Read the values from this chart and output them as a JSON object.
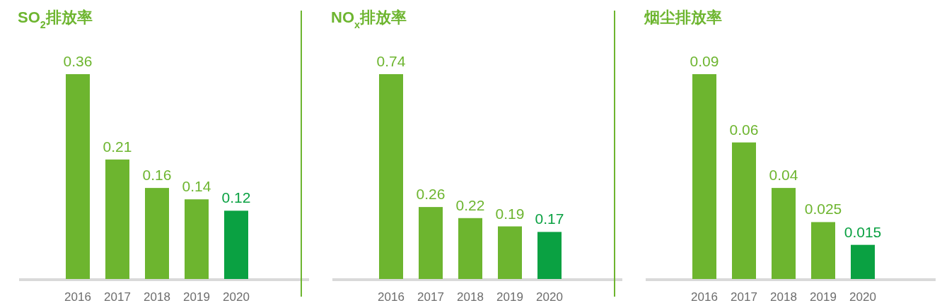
{
  "chart_data": [
    {
      "type": "bar",
      "title": "SO$_{2}$排放率",
      "categories": [
        "2016",
        "2017",
        "2018",
        "2019",
        "2020"
      ],
      "values": [
        0.36,
        0.21,
        0.16,
        0.14,
        0.12
      ],
      "colors": [
        "#6db52f",
        "#6db52f",
        "#6db52f",
        "#6db52f",
        "#0aa142"
      ],
      "data_labels": true
    },
    {
      "type": "bar",
      "title": "NO$_{x}$排放率",
      "categories": [
        "2016",
        "2017",
        "2018",
        "2019",
        "2020"
      ],
      "values": [
        0.74,
        0.26,
        0.22,
        0.19,
        0.17
      ],
      "colors": [
        "#6db52f",
        "#6db52f",
        "#6db52f",
        "#6db52f",
        "#0aa142"
      ],
      "data_labels": true
    },
    {
      "type": "bar",
      "title": "烟尘排放率",
      "categories": [
        "2016",
        "2017",
        "2018",
        "2019",
        "2020"
      ],
      "values": [
        0.09,
        0.06,
        0.04,
        0.025,
        0.015
      ],
      "colors": [
        "#6db52f",
        "#6db52f",
        "#6db52f",
        "#6db52f",
        "#0aa142"
      ],
      "data_labels": true
    }
  ]
}
